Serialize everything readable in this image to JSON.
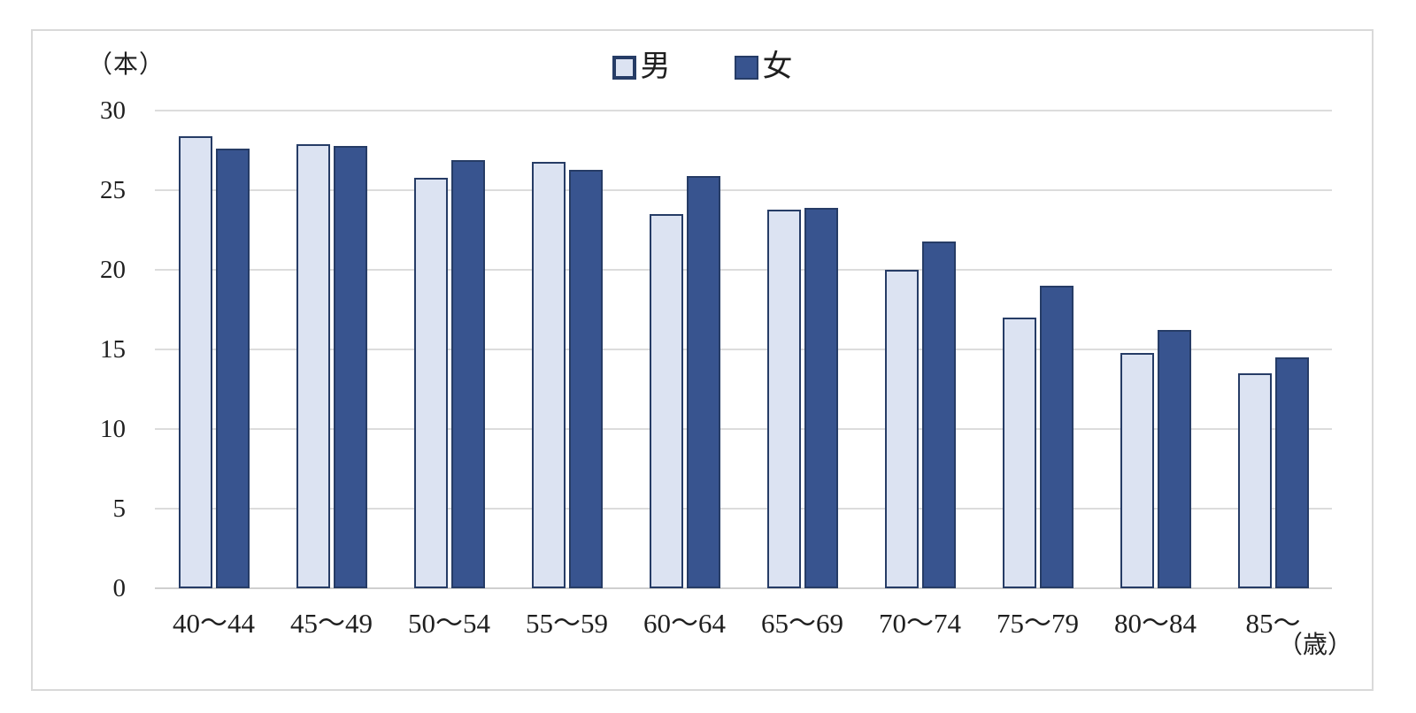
{
  "chart_data": {
    "type": "bar",
    "title": "",
    "categories": [
      "40～44",
      "45～49",
      "50～54",
      "55～59",
      "60～64",
      "65～69",
      "70～74",
      "75～79",
      "80～84",
      "85～"
    ],
    "series": [
      {
        "name": "男",
        "key": "male",
        "fill": "#dce3f2",
        "border": "#263c66",
        "values": [
          28.4,
          27.9,
          25.8,
          26.8,
          23.5,
          23.8,
          20.0,
          17.0,
          14.8,
          13.5
        ]
      },
      {
        "name": "女",
        "key": "female",
        "fill": "#38548f",
        "border": "#263c66",
        "values": [
          27.6,
          27.8,
          26.9,
          26.3,
          25.9,
          23.9,
          21.8,
          19.0,
          16.2,
          14.5
        ]
      }
    ],
    "xlabel": "（歳）",
    "ylabel": "（本）",
    "ylim": [
      0,
      30
    ],
    "yticks": [
      0,
      5,
      10,
      15,
      20,
      25,
      30
    ],
    "grid": true,
    "legend_position": "top-center",
    "colors": {
      "gridline": "#dcdcdc",
      "baseline": "#cfcfcf",
      "text": "#1f1f1f",
      "frame_border": "#d9d9d9",
      "background": "#ffffff"
    }
  }
}
